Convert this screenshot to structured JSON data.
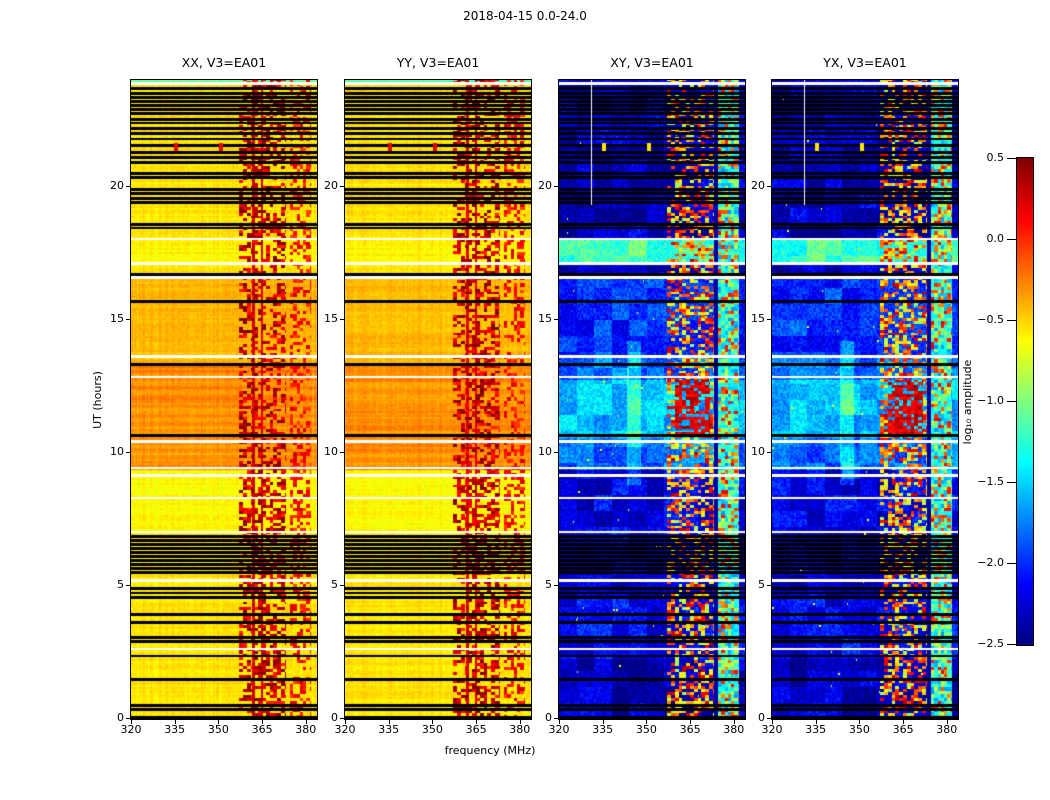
{
  "title": "2018-04-15 0.0-24.0",
  "colorbar": {
    "label_display": "log₁₀ amplitude",
    "ticks": [
      "0.5",
      "0.0",
      "−0.5",
      "−1.0",
      "−1.5",
      "−2.0",
      "−2.5"
    ]
  },
  "chart_data": {
    "type": "heatmap",
    "title": "2018-04-15 0.0-24.0",
    "panels": [
      {
        "label": "XX, V3=EA01",
        "polarization": "XX",
        "kind": "parallel"
      },
      {
        "label": "YY, V3=EA01",
        "polarization": "YY",
        "kind": "parallel"
      },
      {
        "label": "XY, V3=EA01",
        "polarization": "XY",
        "kind": "cross"
      },
      {
        "label": "YX, V3=EA01",
        "polarization": "YX",
        "kind": "cross"
      }
    ],
    "x_axis": {
      "label": "frequency (MHz)",
      "range_mhz": [
        320,
        383.5
      ],
      "ticks": [
        320,
        335,
        350,
        365,
        380
      ]
    },
    "y_axis": {
      "label": "UT (hours)",
      "range_hours": [
        0,
        24
      ],
      "ticks": [
        0,
        5,
        10,
        15,
        20
      ]
    },
    "color_axis": {
      "label": "log10 amplitude",
      "vmin": -2.5,
      "vmax": 0.5,
      "colormap": "jet",
      "tick_values": [
        0.5,
        0.0,
        -0.5,
        -1.0,
        -1.5,
        -2.0,
        -2.5
      ]
    },
    "features": {
      "parallel_base_log10amp": -0.55,
      "parallel_bright_interval_hours": [
        9.35,
        13.35
      ],
      "cross_base_log10amp": -2.32,
      "cross_bright_interval_hours": [
        9.35,
        13.55
      ],
      "rfi_band_mhz": [
        357,
        373.2
      ],
      "rfi_gap_mhz": [
        373.2,
        374.4
      ],
      "upper_rfi_band_mhz": [
        374.5,
        381.5
      ],
      "strong_rfi_blob": {
        "hours": [
          10.7,
          12.75
        ],
        "mhz": [
          359.5,
          371.5
        ]
      },
      "bright_band_hours": [
        17.15,
        18.0
      ],
      "cross_smudge": {
        "hours": [
          8.8,
          14.2
        ],
        "mhz": [
          343,
          348
        ]
      },
      "white_channel_mhz": 331,
      "white_channel_from_hour": 19.3,
      "dot_marks": [
        [
          335.4,
          21.5
        ],
        [
          350.7,
          21.5
        ]
      ],
      "flagged_black_rows_hours": [
        0.05,
        0.35,
        0.5,
        1.45,
        2.35,
        2.9,
        3.05,
        3.6,
        3.9,
        4.55,
        4.72,
        4.9,
        5.5,
        5.65,
        5.8,
        5.95,
        6.1,
        6.25,
        6.4,
        6.55,
        6.7,
        6.85,
        10.65,
        13.3,
        15.7,
        16.7,
        18.45,
        18.6,
        19.4,
        19.55,
        19.75,
        19.9,
        20.35,
        20.5,
        20.9,
        21.1,
        21.3,
        21.55,
        21.8,
        22.0,
        22.2,
        22.4,
        22.55,
        22.75,
        22.9,
        23.05,
        23.2,
        23.35,
        23.5,
        23.7
      ],
      "flagged_white_rows_hours": [
        2.62,
        5.2,
        7.02,
        8.3,
        9.15,
        9.42,
        10.42,
        12.85,
        13.62,
        16.6,
        17.12,
        18.04,
        23.88
      ]
    }
  }
}
